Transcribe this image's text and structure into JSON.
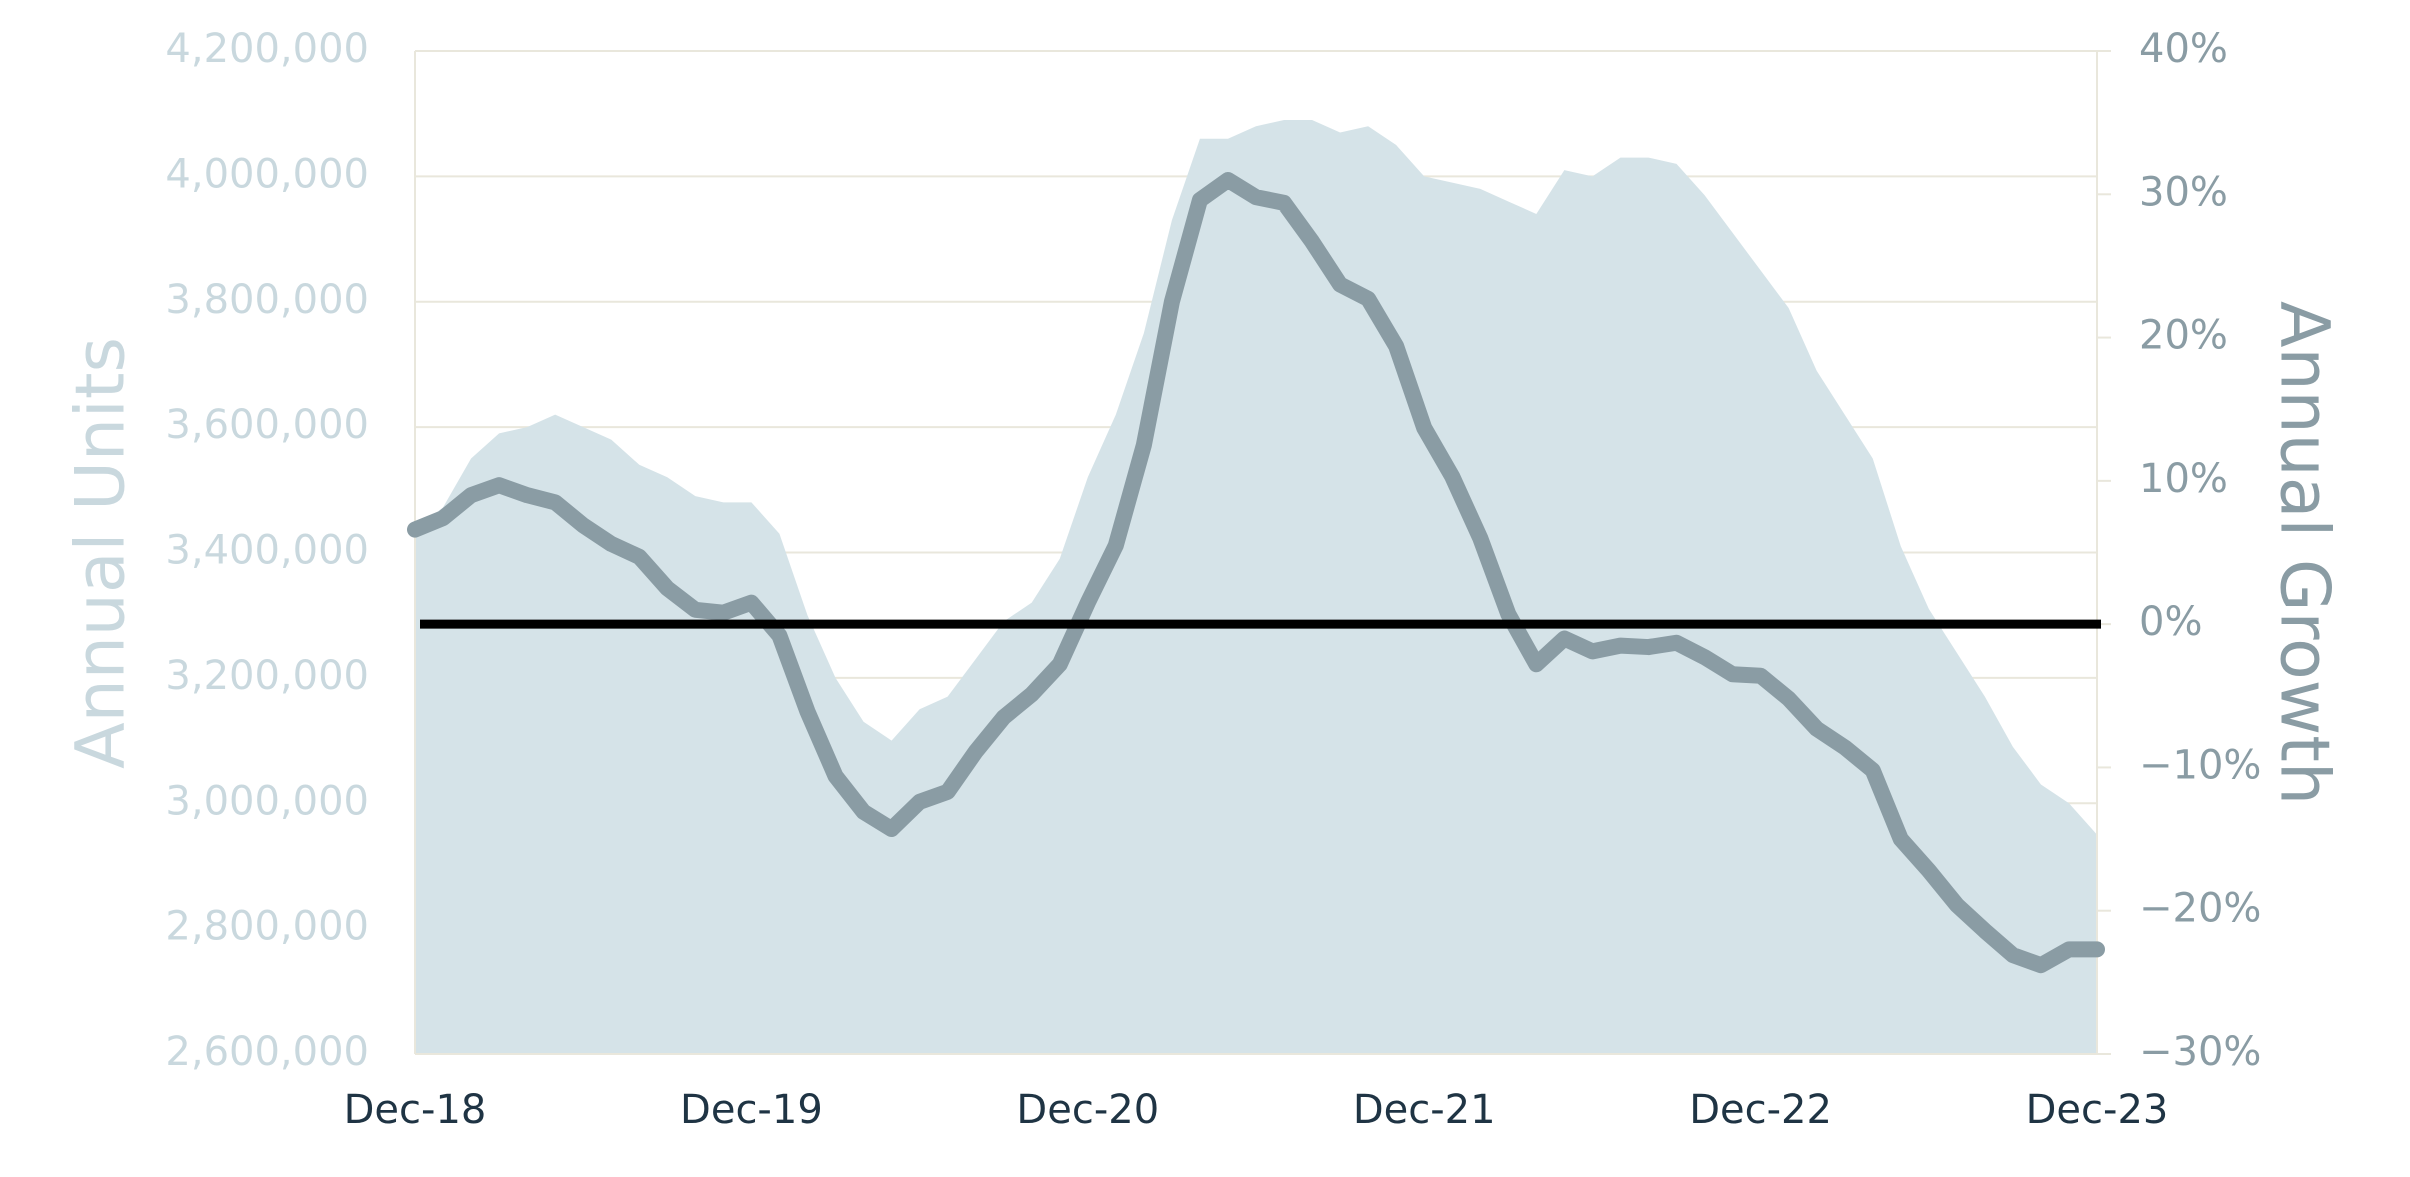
{
  "chart_data": {
    "type": "combo",
    "ylabel": "Annual Units",
    "y2label": "Annual Growth",
    "categories": [
      "Dec-18",
      null,
      null,
      null,
      null,
      null,
      null,
      null,
      null,
      null,
      null,
      null,
      "Dec-19",
      null,
      null,
      null,
      null,
      null,
      null,
      null,
      null,
      null,
      null,
      null,
      "Dec-20",
      null,
      null,
      null,
      null,
      null,
      null,
      null,
      null,
      null,
      null,
      null,
      "Dec-21",
      null,
      null,
      null,
      null,
      null,
      null,
      null,
      null,
      null,
      null,
      null,
      "Dec-22",
      null,
      null,
      null,
      null,
      null,
      null,
      null,
      null,
      null,
      null,
      null,
      "Dec-23"
    ],
    "series": [
      {
        "type": "area",
        "axis": "y",
        "color": "#d5e3e8",
        "values": [
          3436000,
          3472000,
          3550000,
          3590000,
          3600000,
          3620000,
          3600000,
          3580000,
          3540000,
          3520000,
          3490000,
          3480000,
          3480000,
          3430000,
          3300000,
          3200000,
          3130000,
          3100000,
          3150000,
          3170000,
          3230000,
          3290000,
          3320000,
          3390000,
          3520000,
          3620000,
          3750000,
          3930000,
          4060000,
          4060000,
          4080000,
          4090000,
          4090000,
          4070000,
          4080000,
          4050000,
          4000000,
          3990000,
          3980000,
          3960000,
          3940000,
          4010000,
          4000000,
          4030000,
          4030000,
          4020000,
          3970000,
          3910000,
          3850000,
          3790000,
          3690000,
          3620000,
          3550000,
          3410000,
          3310000,
          3240000,
          3170000,
          3090000,
          3030000,
          3000000,
          2950000
        ]
      },
      {
        "type": "line",
        "axis": "y2",
        "color": "#8a9ca4",
        "values": [
          6.6,
          7.4,
          9.0,
          9.7,
          9.0,
          8.5,
          6.9,
          5.6,
          4.7,
          2.5,
          1.0,
          0.8,
          1.5,
          -0.8,
          -6.1,
          -10.6,
          -13.1,
          -14.3,
          -12.4,
          -11.7,
          -8.9,
          -6.5,
          -4.9,
          -2.8,
          1.5,
          5.5,
          12.5,
          22.5,
          29.6,
          31.0,
          29.8,
          29.4,
          26.7,
          23.7,
          22.7,
          19.4,
          13.7,
          10.3,
          6.0,
          0.7,
          -2.8,
          -1.0,
          -1.9,
          -1.5,
          -1.6,
          -1.3,
          -2.3,
          -3.5,
          -3.6,
          -5.2,
          -7.3,
          -8.6,
          -10.2,
          -15.0,
          -17.2,
          -19.6,
          -21.4,
          -23.1,
          -23.8,
          -22.7,
          -22.7
        ]
      }
    ],
    "ylim": [
      2600000,
      4200000
    ],
    "yticks": [
      {
        "value": 2600000,
        "label": "2,600,000"
      },
      {
        "value": 2800000,
        "label": "2,800,000"
      },
      {
        "value": 3000000,
        "label": "3,000,000"
      },
      {
        "value": 3200000,
        "label": "3,200,000"
      },
      {
        "value": 3400000,
        "label": "3,400,000"
      },
      {
        "value": 3600000,
        "label": "3,600,000"
      },
      {
        "value": 3800000,
        "label": "3,800,000"
      },
      {
        "value": 4000000,
        "label": "4,000,000"
      },
      {
        "value": 4200000,
        "label": "4,200,000"
      }
    ],
    "y2lim": [
      -30,
      40
    ],
    "y2ticks": [
      {
        "value": -30,
        "label": "−30%"
      },
      {
        "value": -20,
        "label": "−20%"
      },
      {
        "value": -10,
        "label": "−10%"
      },
      {
        "value": 0,
        "label": "0%"
      },
      {
        "value": 10,
        "label": "10%"
      },
      {
        "value": 20,
        "label": "20%"
      },
      {
        "value": 30,
        "label": "30%"
      },
      {
        "value": 40,
        "label": "40%"
      }
    ],
    "grid": true,
    "zero_line": true
  }
}
